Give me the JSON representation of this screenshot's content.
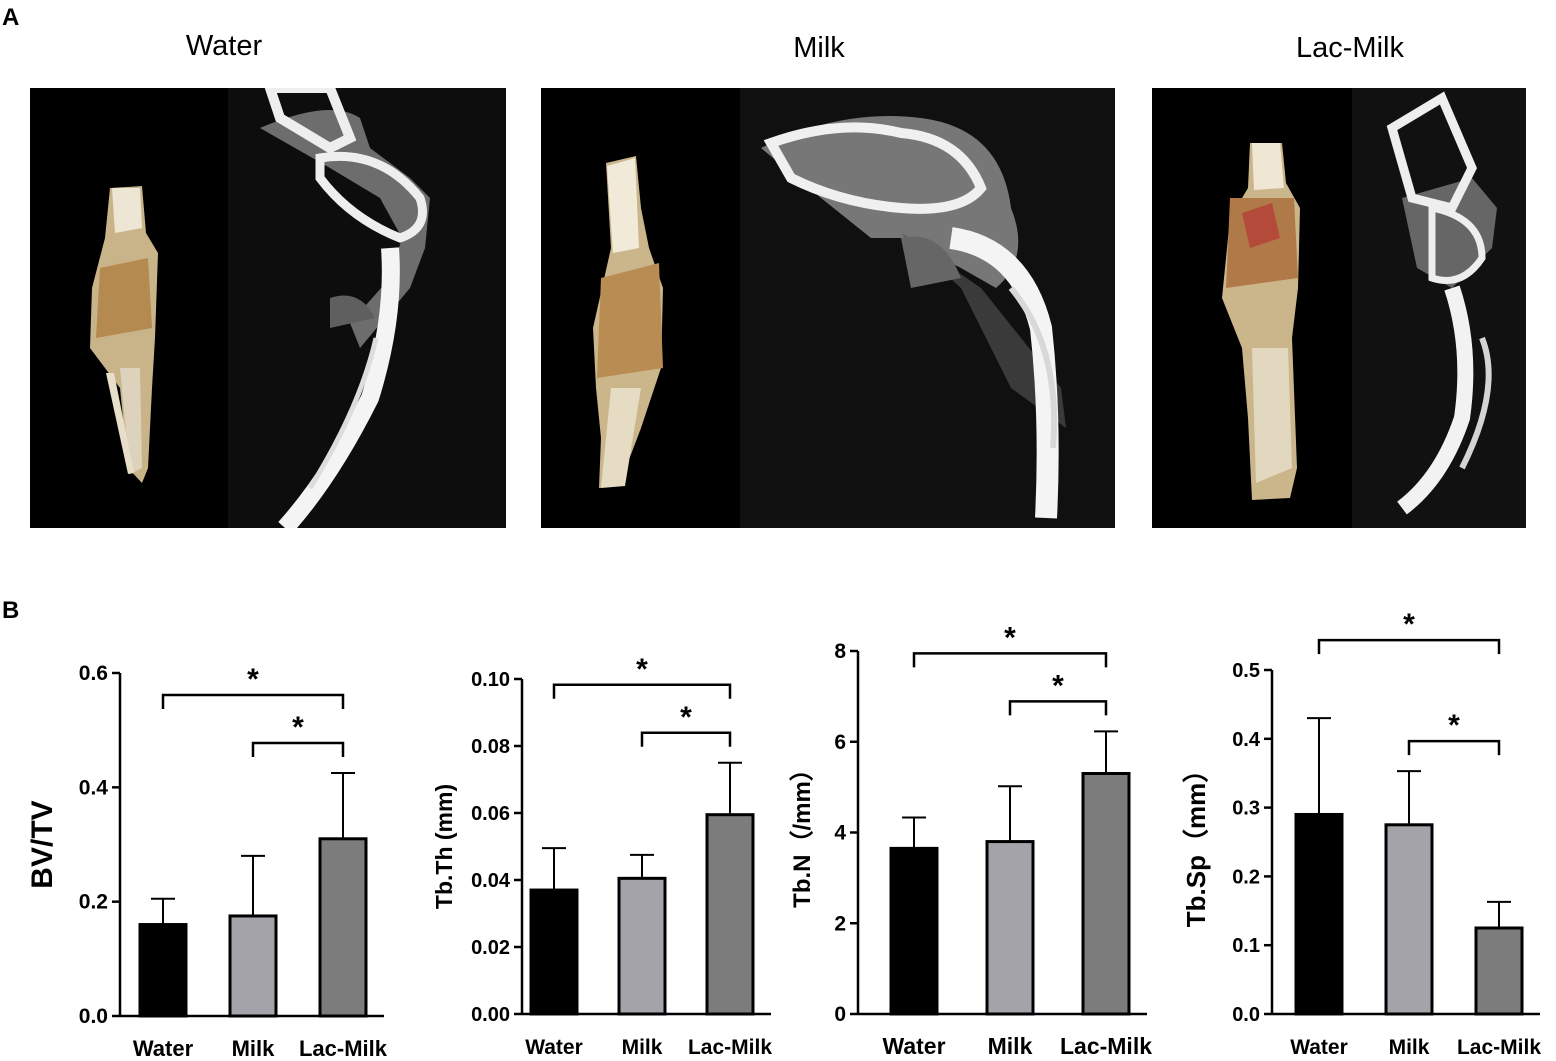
{
  "panel_a_label": "A",
  "panel_b_label": "B",
  "image_panels": [
    {
      "title": "Water"
    },
    {
      "title": "Milk"
    },
    {
      "title": "Lac-Milk"
    }
  ],
  "colors": {
    "water": "#000000",
    "milk": "#a3a3a9",
    "lac_milk": "#7c7c7c",
    "bone": "#e6dcc6",
    "ct_bone": "#f2f2f2",
    "ct_tissue": "#7a7a7a"
  },
  "chart_data": [
    {
      "type": "bar",
      "categories": [
        "Water",
        "Milk",
        "Lac-Milk"
      ],
      "values": [
        0.16,
        0.175,
        0.31
      ],
      "errors": [
        0.045,
        0.105,
        0.115
      ],
      "ylabel": "BV/TV",
      "ylim": [
        0,
        0.6
      ],
      "yticks": [
        "0.0",
        "0.2",
        "0.4",
        "0.6"
      ],
      "significance": [
        {
          "from": 0,
          "to": 2,
          "label": "*"
        },
        {
          "from": 1,
          "to": 2,
          "label": "*"
        }
      ]
    },
    {
      "type": "bar",
      "categories": [
        "Water",
        "Milk",
        "Lac-Milk"
      ],
      "values": [
        0.037,
        0.0405,
        0.0595
      ],
      "errors": [
        0.0125,
        0.007,
        0.0155
      ],
      "ylabel": "Tb.Th (mm)",
      "ylim": [
        0,
        0.1
      ],
      "yticks": [
        "0.00",
        "0.02",
        "0.04",
        "0.06",
        "0.08",
        "0.10"
      ],
      "significance": [
        {
          "from": 0,
          "to": 2,
          "label": "*"
        },
        {
          "from": 1,
          "to": 2,
          "label": "*"
        }
      ]
    },
    {
      "type": "bar",
      "categories": [
        "Water",
        "Milk",
        "Lac-Milk"
      ],
      "values": [
        3.65,
        3.8,
        5.3
      ],
      "errors": [
        0.68,
        1.22,
        0.93
      ],
      "ylabel": "Tb.N（/mm）",
      "ylim": [
        0,
        8
      ],
      "yticks": [
        "0",
        "2",
        "4",
        "6",
        "8"
      ],
      "significance": [
        {
          "from": 0,
          "to": 2,
          "label": "*"
        },
        {
          "from": 1,
          "to": 2,
          "label": "*"
        }
      ]
    },
    {
      "type": "bar",
      "categories": [
        "Water",
        "Milk",
        "Lac-Milk"
      ],
      "values": [
        0.29,
        0.275,
        0.125
      ],
      "errors": [
        0.14,
        0.078,
        0.038
      ],
      "ylabel": "Tb.Sp（mm）",
      "ylim": [
        0,
        0.5
      ],
      "yticks": [
        "0.0",
        "0.1",
        "0.2",
        "0.3",
        "0.4",
        "0.5"
      ],
      "significance": [
        {
          "from": 0,
          "to": 2,
          "label": "*"
        },
        {
          "from": 1,
          "to": 2,
          "label": "*"
        }
      ]
    }
  ]
}
